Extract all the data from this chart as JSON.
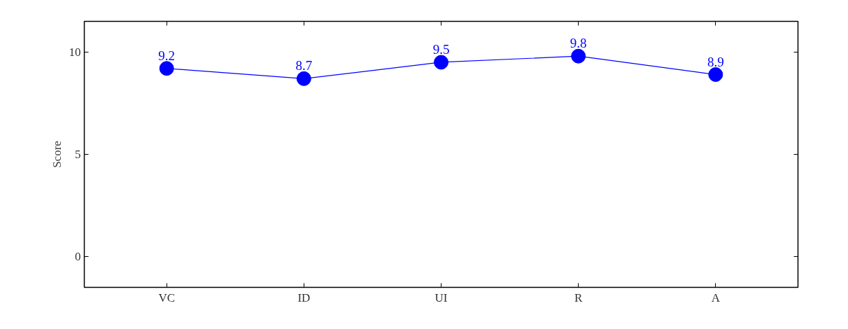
{
  "chart_data": {
    "type": "line",
    "ylabel": "Score",
    "categories": [
      "VC",
      "ID",
      "UI",
      "R",
      "A"
    ],
    "series": [
      {
        "color": "#0000ff",
        "values": [
          9.2,
          8.7,
          9.5,
          9.8,
          8.9
        ]
      }
    ],
    "ylim": [
      -1.5,
      11.5
    ],
    "yticks": [
      0,
      5,
      10
    ],
    "grid": false,
    "marker": "circle",
    "line_style": "solid",
    "data_labels": true
  }
}
